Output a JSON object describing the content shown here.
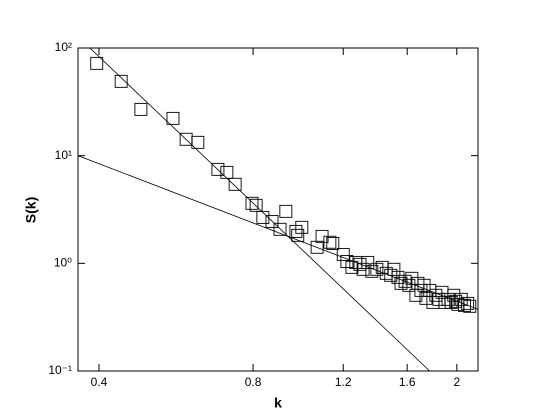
{
  "chart_data": {
    "type": "scatter",
    "x_label": "k",
    "y_label": "S(k)",
    "xscale": "log",
    "yscale": "log",
    "xlim": [
      0.364,
      2.2
    ],
    "ylim": [
      0.1,
      100
    ],
    "xticks": [
      0.4,
      0.8,
      1.2,
      1.6,
      2
    ],
    "yticks": [
      {
        "value": 0.1,
        "label": "10⁻¹"
      },
      {
        "value": 1,
        "label": "10⁰"
      },
      {
        "value": 10,
        "label": "10¹"
      },
      {
        "value": 100,
        "label": "10²"
      }
    ],
    "series": [
      {
        "type": "scatter",
        "color": "#000000",
        "x": [
          0.396,
          0.442,
          0.483,
          0.558,
          0.592,
          0.624,
          0.683,
          0.711,
          0.738,
          0.796,
          0.811,
          0.836,
          0.871,
          0.903,
          0.927,
          0.97,
          0.978,
          0.996,
          1.067,
          1.091,
          1.13,
          1.145,
          1.2,
          1.22,
          1.248,
          1.27,
          1.294,
          1.312,
          1.34,
          1.365,
          1.396,
          1.43,
          1.456,
          1.486,
          1.507,
          1.535,
          1.556,
          1.585,
          1.612,
          1.634,
          1.664,
          1.679,
          1.702,
          1.726,
          1.741,
          1.771,
          1.796,
          1.82,
          1.845,
          1.871,
          1.897,
          1.923,
          1.95,
          1.973,
          1.99,
          2.01,
          2.04,
          2.07,
          2.1,
          2.12
        ],
        "values": [
          72,
          49,
          26.9,
          22.2,
          14.2,
          13.3,
          7.46,
          7.0,
          5.42,
          3.61,
          3.46,
          2.67,
          2.45,
          2.07,
          3.04,
          1.98,
          1.82,
          2.16,
          1.41,
          1.78,
          1.57,
          1.53,
          1.21,
          1.04,
          0.918,
          1.02,
          0.979,
          0.88,
          1.02,
          0.843,
          0.88,
          0.918,
          0.808,
          0.774,
          0.88,
          0.741,
          0.652,
          0.681,
          0.625,
          0.726,
          0.505,
          0.652,
          0.561,
          0.625,
          0.473,
          0.561,
          0.434,
          0.505,
          0.463,
          0.538,
          0.434,
          0.463,
          0.434,
          0.505,
          0.444,
          0.416,
          0.463,
          0.407,
          0.425,
          0.399
        ]
      },
      {
        "type": "line",
        "color": "#000000",
        "x": [
          0.384,
          1.77
        ],
        "values": [
          100,
          0.1
        ]
      },
      {
        "type": "line",
        "color": "#000000",
        "x": [
          0.364,
          2.2
        ],
        "values": [
          10,
          0.374
        ]
      }
    ]
  }
}
